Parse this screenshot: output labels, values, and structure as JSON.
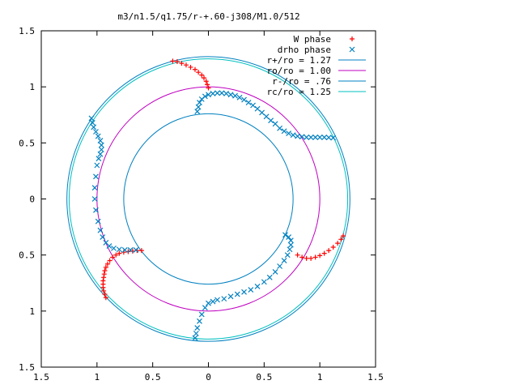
{
  "chart_data": {
    "type": "scatter",
    "title": "m3/n1.5/q1.75/r-+.60-j308/M1.0/512",
    "xlabel": "",
    "ylabel": "",
    "xlim": [
      -1.5,
      1.5
    ],
    "ylim": [
      -1.5,
      1.5
    ],
    "x_ticks": [
      -1.5,
      -1,
      -0.5,
      0,
      0.5,
      1,
      1.5
    ],
    "y_ticks": [
      -1.5,
      -1,
      -0.5,
      0,
      0.5,
      1,
      1.5
    ],
    "x_tick_labels": [
      "1.5",
      "1",
      "0.5",
      "0",
      "0.5",
      "1",
      "1.5"
    ],
    "y_tick_labels": [
      "1.5",
      "1",
      "0.5",
      "0",
      "0.5",
      "1",
      "1.5"
    ],
    "grid": false,
    "legend_position": "top-right",
    "series": [
      {
        "name": "W phase",
        "marker": "plus",
        "color": "#ff0000",
        "points": [
          [
            -0.32,
            1.23
          ],
          [
            -0.28,
            1.225
          ],
          [
            -0.24,
            1.21
          ],
          [
            -0.2,
            1.195
          ],
          [
            -0.16,
            1.175
          ],
          [
            -0.12,
            1.155
          ],
          [
            -0.09,
            1.13
          ],
          [
            -0.06,
            1.105
          ],
          [
            -0.04,
            1.08
          ],
          [
            -0.02,
            1.05
          ],
          [
            -0.01,
            1.02
          ],
          [
            0.0,
            0.99
          ],
          [
            -0.92,
            -0.88
          ],
          [
            -0.93,
            -0.85
          ],
          [
            -0.94,
            -0.82
          ],
          [
            -0.945,
            -0.79
          ],
          [
            -0.945,
            -0.76
          ],
          [
            -0.945,
            -0.73
          ],
          [
            -0.94,
            -0.7
          ],
          [
            -0.935,
            -0.67
          ],
          [
            -0.93,
            -0.64
          ],
          [
            -0.92,
            -0.61
          ],
          [
            -0.905,
            -0.58
          ],
          [
            -0.885,
            -0.55
          ],
          [
            -0.86,
            -0.52
          ],
          [
            -0.83,
            -0.5
          ],
          [
            -0.8,
            -0.485
          ],
          [
            -0.76,
            -0.475
          ],
          [
            -0.72,
            -0.47
          ],
          [
            -0.68,
            -0.465
          ],
          [
            -0.64,
            -0.46
          ],
          [
            -0.6,
            -0.46
          ],
          [
            0.8,
            -0.5
          ],
          [
            0.84,
            -0.52
          ],
          [
            0.88,
            -0.53
          ],
          [
            0.92,
            -0.53
          ],
          [
            0.96,
            -0.52
          ],
          [
            1.0,
            -0.505
          ],
          [
            1.04,
            -0.485
          ],
          [
            1.08,
            -0.46
          ],
          [
            1.12,
            -0.43
          ],
          [
            1.16,
            -0.395
          ],
          [
            1.19,
            -0.36
          ],
          [
            1.21,
            -0.33
          ]
        ]
      },
      {
        "name": "drho phase",
        "marker": "cross",
        "color": "#0080c0",
        "points": [
          [
            -0.1,
            0.78
          ],
          [
            -0.09,
            0.82
          ],
          [
            -0.08,
            0.86
          ],
          [
            -0.06,
            0.89
          ],
          [
            -0.03,
            0.915
          ],
          [
            0.0,
            0.93
          ],
          [
            0.04,
            0.94
          ],
          [
            0.08,
            0.945
          ],
          [
            0.12,
            0.945
          ],
          [
            0.16,
            0.94
          ],
          [
            0.2,
            0.93
          ],
          [
            0.24,
            0.92
          ],
          [
            0.28,
            0.905
          ],
          [
            0.32,
            0.885
          ],
          [
            0.36,
            0.86
          ],
          [
            0.4,
            0.835
          ],
          [
            0.44,
            0.805
          ],
          [
            0.48,
            0.77
          ],
          [
            0.52,
            0.735
          ],
          [
            0.56,
            0.7
          ],
          [
            0.6,
            0.67
          ],
          [
            0.64,
            0.63
          ],
          [
            0.68,
            0.605
          ],
          [
            0.72,
            0.585
          ],
          [
            0.76,
            0.57
          ],
          [
            0.8,
            0.56
          ],
          [
            0.84,
            0.555
          ],
          [
            0.88,
            0.55
          ],
          [
            0.92,
            0.55
          ],
          [
            0.96,
            0.55
          ],
          [
            1.0,
            0.55
          ],
          [
            1.04,
            0.55
          ],
          [
            1.08,
            0.548
          ],
          [
            1.12,
            0.545
          ],
          [
            -1.05,
            0.72
          ],
          [
            -1.04,
            0.68
          ],
          [
            -1.03,
            0.64
          ],
          [
            -1.01,
            0.6
          ],
          [
            -0.99,
            0.56
          ],
          [
            -0.97,
            0.52
          ],
          [
            -0.96,
            0.48
          ],
          [
            -0.96,
            0.44
          ],
          [
            -0.97,
            0.4
          ],
          [
            -0.985,
            0.36
          ],
          [
            -1.0,
            0.3
          ],
          [
            -1.01,
            0.2
          ],
          [
            -1.02,
            0.1
          ],
          [
            -1.02,
            0.0
          ],
          [
            -1.01,
            -0.1
          ],
          [
            -0.99,
            -0.2
          ],
          [
            -0.97,
            -0.28
          ],
          [
            -0.95,
            -0.34
          ],
          [
            -0.92,
            -0.39
          ],
          [
            -0.89,
            -0.42
          ],
          [
            -0.85,
            -0.44
          ],
          [
            -0.8,
            -0.45
          ],
          [
            -0.75,
            -0.455
          ],
          [
            -0.7,
            -0.455
          ],
          [
            -0.65,
            -0.455
          ],
          [
            0.69,
            -0.32
          ],
          [
            0.72,
            -0.34
          ],
          [
            0.74,
            -0.37
          ],
          [
            0.74,
            -0.41
          ],
          [
            0.73,
            -0.45
          ],
          [
            0.71,
            -0.5
          ],
          [
            0.68,
            -0.55
          ],
          [
            0.64,
            -0.6
          ],
          [
            0.6,
            -0.65
          ],
          [
            0.55,
            -0.7
          ],
          [
            0.5,
            -0.74
          ],
          [
            0.44,
            -0.78
          ],
          [
            0.38,
            -0.81
          ],
          [
            0.32,
            -0.83
          ],
          [
            0.26,
            -0.85
          ],
          [
            0.2,
            -0.87
          ],
          [
            0.14,
            -0.89
          ],
          [
            0.08,
            -0.9
          ],
          [
            0.04,
            -0.915
          ],
          [
            0.0,
            -0.93
          ],
          [
            -0.03,
            -0.97
          ],
          [
            -0.06,
            -1.03
          ],
          [
            -0.08,
            -1.09
          ],
          [
            -0.1,
            -1.15
          ],
          [
            -0.11,
            -1.2
          ],
          [
            -0.12,
            -1.24
          ]
        ]
      }
    ],
    "circles": [
      {
        "name": "r+/ro = 1.27",
        "radius": 1.27,
        "color": "#0080c0"
      },
      {
        "name": "ro/ro = 1.00",
        "radius": 1.0,
        "color": "#c000c0"
      },
      {
        "name": "r-/ro = .76",
        "radius": 0.76,
        "color": "#0080c0"
      },
      {
        "name": "rc/ro = 1.25",
        "radius": 1.25,
        "color": "#00c0c0"
      }
    ]
  }
}
